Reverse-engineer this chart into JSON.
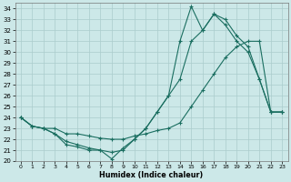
{
  "xlabel": "Humidex (Indice chaleur)",
  "bg_color": "#cce8e8",
  "grid_color": "#aacccc",
  "line_color": "#1a6e60",
  "xlim": [
    -0.5,
    23.5
  ],
  "ylim": [
    20,
    34.5
  ],
  "xticks": [
    0,
    1,
    2,
    3,
    4,
    5,
    6,
    7,
    8,
    9,
    10,
    11,
    12,
    13,
    14,
    15,
    16,
    17,
    18,
    19,
    20,
    21,
    22,
    23
  ],
  "yticks": [
    20,
    21,
    22,
    23,
    24,
    25,
    26,
    27,
    28,
    29,
    30,
    31,
    32,
    33,
    34
  ],
  "line1_x": [
    0,
    1,
    2,
    3,
    4,
    5,
    6,
    7,
    8,
    9,
    10,
    11,
    12,
    13,
    14,
    15,
    16,
    17,
    18,
    19,
    20,
    21,
    22,
    23
  ],
  "line1_y": [
    24.0,
    23.2,
    23.0,
    23.0,
    22.5,
    22.5,
    22.3,
    22.1,
    22.0,
    22.0,
    22.3,
    22.5,
    22.8,
    23.0,
    23.5,
    25.0,
    26.5,
    28.0,
    29.5,
    30.5,
    31.0,
    31.0,
    24.5,
    24.5
  ],
  "line2_x": [
    0,
    1,
    2,
    3,
    4,
    5,
    6,
    7,
    8,
    9,
    10,
    11,
    12,
    13,
    14,
    15,
    16,
    17,
    18,
    19,
    20,
    21,
    22,
    23
  ],
  "line2_y": [
    24.0,
    23.2,
    23.0,
    22.5,
    21.8,
    21.5,
    21.2,
    21.0,
    20.8,
    21.0,
    22.0,
    23.0,
    24.5,
    26.0,
    27.5,
    31.0,
    32.0,
    33.5,
    32.5,
    31.0,
    30.0,
    27.5,
    24.5,
    24.5
  ],
  "line3_x": [
    0,
    1,
    2,
    3,
    4,
    5,
    6,
    7,
    8,
    9,
    10,
    11,
    12,
    13,
    14,
    15,
    16,
    17,
    18,
    19,
    20,
    21,
    22,
    23
  ],
  "line3_y": [
    24.0,
    23.2,
    23.0,
    22.5,
    21.5,
    21.3,
    21.0,
    21.0,
    20.2,
    21.2,
    22.0,
    23.0,
    24.5,
    26.0,
    31.0,
    34.2,
    32.0,
    33.5,
    33.0,
    31.5,
    30.5,
    27.5,
    24.5,
    24.5
  ]
}
